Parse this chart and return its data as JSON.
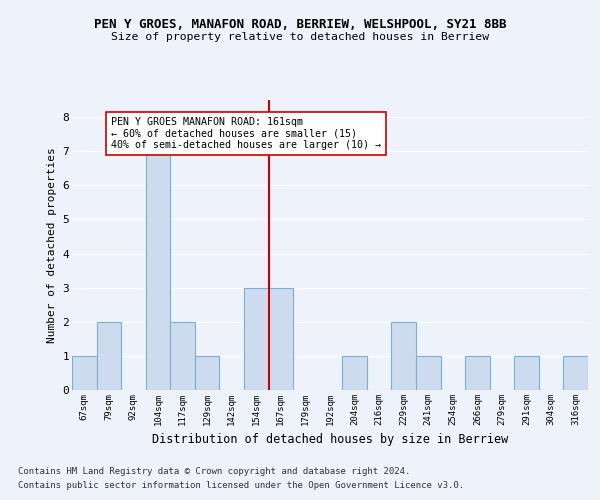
{
  "title": "PEN Y GROES, MANAFON ROAD, BERRIEW, WELSHPOOL, SY21 8BB",
  "subtitle": "Size of property relative to detached houses in Berriew",
  "xlabel": "Distribution of detached houses by size in Berriew",
  "ylabel": "Number of detached properties",
  "categories": [
    "67sqm",
    "79sqm",
    "92sqm",
    "104sqm",
    "117sqm",
    "129sqm",
    "142sqm",
    "154sqm",
    "167sqm",
    "179sqm",
    "192sqm",
    "204sqm",
    "216sqm",
    "229sqm",
    "241sqm",
    "254sqm",
    "266sqm",
    "279sqm",
    "291sqm",
    "304sqm",
    "316sqm"
  ],
  "values": [
    1,
    2,
    0,
    7,
    2,
    1,
    0,
    3,
    3,
    0,
    0,
    1,
    0,
    2,
    1,
    0,
    1,
    0,
    1,
    0,
    1
  ],
  "bar_color": "#ccdcee",
  "bar_edge_color": "#7aafd4",
  "vline_x_index": 8,
  "vline_color": "#cc0000",
  "annotation_text": "PEN Y GROES MANAFON ROAD: 161sqm\n← 60% of detached houses are smaller (15)\n40% of semi-detached houses are larger (10) →",
  "annotation_box_color": "#ffffff",
  "annotation_box_edge_color": "#cc0000",
  "ylim_max": 8.5,
  "yticks": [
    0,
    1,
    2,
    3,
    4,
    5,
    6,
    7,
    8
  ],
  "background_color": "#eef2fa",
  "grid_color": "#ffffff",
  "footer_line1": "Contains HM Land Registry data © Crown copyright and database right 2024.",
  "footer_line2": "Contains public sector information licensed under the Open Government Licence v3.0."
}
